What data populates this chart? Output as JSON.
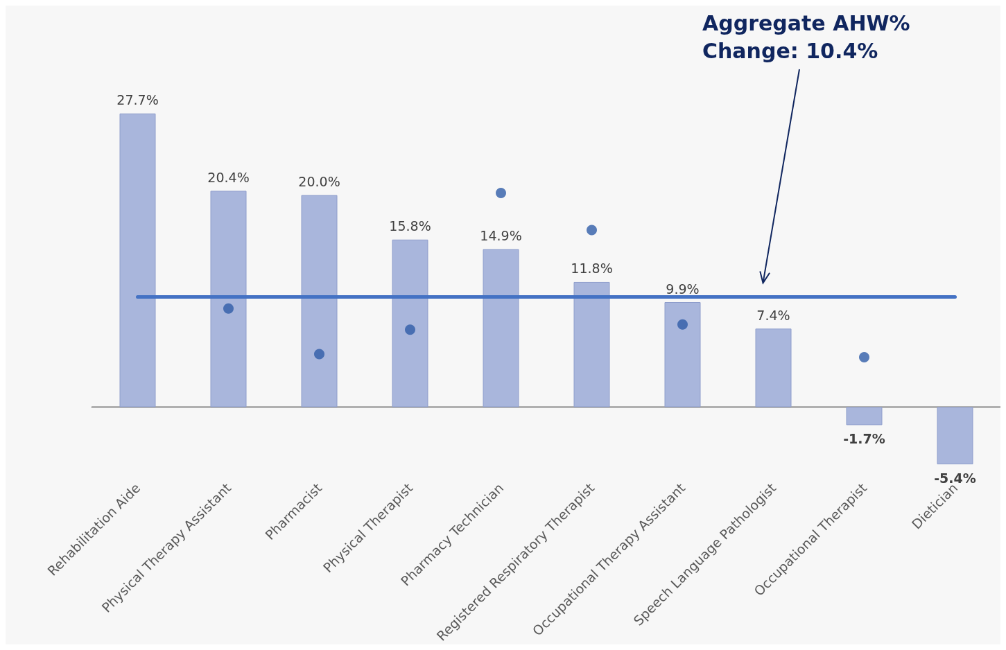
{
  "chart_data": {
    "type": "bar",
    "categories": [
      "Rehabilitation Aide",
      "Physical Therapy Assistant",
      "Pharmacist",
      "Physical Therapist",
      "Pharmacy Technician",
      "Registered Respiratory Therapist",
      "Occupational Therapy Assistant",
      "Speech Language Pathologist",
      "Occupational Therapist",
      "Dietician"
    ],
    "series": [
      {
        "color": "#a9b6dc",
        "values": [
          27.7,
          20.4,
          20.0,
          15.8,
          14.9,
          11.8,
          9.9,
          7.4,
          -1.7,
          -5.4
        ],
        "value_labels": [
          "27.7%",
          "20.4%",
          "20.0%",
          "15.8%",
          "14.9%",
          "11.8%",
          "9.9%",
          "7.4%",
          "-1.7%",
          "-5.4%"
        ]
      },
      {
        "type": "scatter",
        "color": "#2f5ca8",
        "values": [
          null,
          9.3,
          5.0,
          7.3,
          20.2,
          16.7,
          7.8,
          null,
          4.7,
          null
        ]
      }
    ],
    "ref_lines": [
      {
        "axis": "y",
        "value": 10.4,
        "color": "#4472c4"
      }
    ],
    "annotations": [
      "Aggregate AHW%\nChange: 10.4%"
    ],
    "marker": "circle",
    "grid": false,
    "legend": false,
    "tick_labels": "x"
  }
}
